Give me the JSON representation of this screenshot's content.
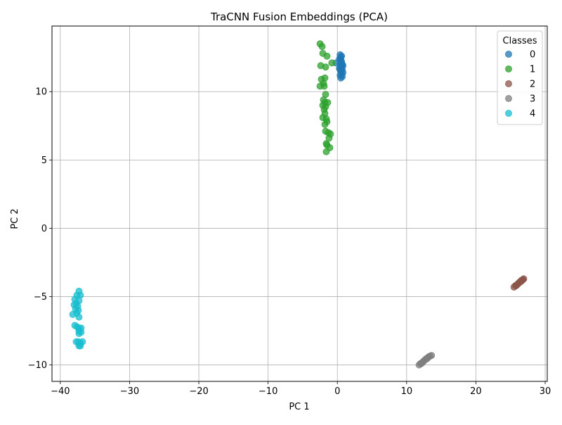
{
  "chart_data": {
    "type": "scatter",
    "title": "TraCNN Fusion Embeddings (PCA)",
    "xlabel": "PC 1",
    "ylabel": "PC 2",
    "xlim": [
      -41.2,
      30.3
    ],
    "ylim": [
      -11.2,
      14.8
    ],
    "xticks": [
      -40,
      -30,
      -20,
      -10,
      0,
      10,
      20,
      30
    ],
    "yticks": [
      -10,
      -5,
      0,
      5,
      10
    ],
    "xtick_labels": [
      "−40",
      "−30",
      "−20",
      "−10",
      "0",
      "10",
      "20",
      "30"
    ],
    "ytick_labels": [
      "−10",
      "−5",
      "0",
      "5",
      "10"
    ],
    "grid": true,
    "legend": {
      "title": "Classes",
      "placement": "top-right"
    },
    "series": [
      {
        "name": "0",
        "color": "#1f77b4",
        "points": [
          [
            0.4,
            12.7
          ],
          [
            0.5,
            12.5
          ],
          [
            0.6,
            12.6
          ],
          [
            0.3,
            12.4
          ],
          [
            0.5,
            12.3
          ],
          [
            0.6,
            12.2
          ],
          [
            0.4,
            12.1
          ],
          [
            0.7,
            12.0
          ],
          [
            0.5,
            11.9
          ],
          [
            0.6,
            11.8
          ],
          [
            0.3,
            11.7
          ],
          [
            0.7,
            11.6
          ],
          [
            0.5,
            11.5
          ],
          [
            0.8,
            11.4
          ],
          [
            0.6,
            11.3
          ],
          [
            0.4,
            11.2
          ],
          [
            0.7,
            11.1
          ],
          [
            0.5,
            11.0
          ],
          [
            0.6,
            12.0
          ],
          [
            0.4,
            11.6
          ],
          [
            -0.2,
            12.1
          ],
          [
            0.8,
            11.9
          ],
          [
            0.5,
            11.7
          ]
        ]
      },
      {
        "name": "1",
        "color": "#2ca02c",
        "points": [
          [
            -2.5,
            13.5
          ],
          [
            -2.2,
            13.3
          ],
          [
            -2.1,
            12.8
          ],
          [
            -1.5,
            12.6
          ],
          [
            -0.8,
            12.1
          ],
          [
            -2.4,
            11.9
          ],
          [
            -1.7,
            11.8
          ],
          [
            -2.3,
            10.9
          ],
          [
            -1.8,
            11.0
          ],
          [
            -2.0,
            10.6
          ],
          [
            -2.5,
            10.4
          ],
          [
            -1.9,
            10.4
          ],
          [
            -1.7,
            9.8
          ],
          [
            -2.0,
            9.4
          ],
          [
            -1.8,
            9.2
          ],
          [
            -1.4,
            9.2
          ],
          [
            -2.1,
            9.0
          ],
          [
            -1.7,
            8.9
          ],
          [
            -1.9,
            8.7
          ],
          [
            -1.8,
            8.4
          ],
          [
            -2.1,
            8.1
          ],
          [
            -1.6,
            8.0
          ],
          [
            -1.5,
            7.8
          ],
          [
            -1.8,
            7.6
          ],
          [
            -1.7,
            7.1
          ],
          [
            -1.3,
            7.0
          ],
          [
            -1.0,
            6.9
          ],
          [
            -1.2,
            6.6
          ],
          [
            -1.6,
            6.2
          ],
          [
            -1.5,
            6.1
          ],
          [
            -1.1,
            5.9
          ],
          [
            -1.6,
            5.6
          ]
        ]
      },
      {
        "name": "2",
        "color": "#8c564b",
        "points": [
          [
            25.5,
            -4.3
          ],
          [
            25.7,
            -4.2
          ],
          [
            25.9,
            -4.15
          ],
          [
            26.0,
            -4.1
          ],
          [
            26.2,
            -4.0
          ],
          [
            26.3,
            -3.95
          ],
          [
            26.5,
            -3.9
          ],
          [
            26.6,
            -3.8
          ],
          [
            26.8,
            -3.75
          ],
          [
            26.9,
            -3.7
          ],
          [
            26.1,
            -4.05
          ],
          [
            26.4,
            -3.9
          ],
          [
            25.8,
            -4.2
          ],
          [
            26.7,
            -3.8
          ]
        ]
      },
      {
        "name": "3",
        "color": "#7f7f7f",
        "points": [
          [
            11.8,
            -10.0
          ],
          [
            12.0,
            -9.9
          ],
          [
            12.2,
            -9.85
          ],
          [
            12.4,
            -9.75
          ],
          [
            12.6,
            -9.65
          ],
          [
            12.8,
            -9.55
          ],
          [
            13.0,
            -9.5
          ],
          [
            13.2,
            -9.4
          ],
          [
            13.4,
            -9.35
          ],
          [
            13.6,
            -9.3
          ],
          [
            12.3,
            -9.8
          ],
          [
            12.9,
            -9.55
          ],
          [
            12.1,
            -9.9
          ],
          [
            13.1,
            -9.45
          ]
        ]
      },
      {
        "name": "4",
        "color": "#17becf",
        "points": [
          [
            -37.3,
            -4.6
          ],
          [
            -37.6,
            -4.9
          ],
          [
            -37.1,
            -4.9
          ],
          [
            -37.9,
            -5.2
          ],
          [
            -37.3,
            -5.3
          ],
          [
            -37.7,
            -5.5
          ],
          [
            -38.0,
            -5.6
          ],
          [
            -37.5,
            -5.7
          ],
          [
            -37.8,
            -5.9
          ],
          [
            -37.4,
            -6.0
          ],
          [
            -37.6,
            -6.2
          ],
          [
            -38.2,
            -6.3
          ],
          [
            -37.3,
            -6.5
          ],
          [
            -37.9,
            -7.1
          ],
          [
            -37.6,
            -7.2
          ],
          [
            -37.3,
            -7.3
          ],
          [
            -37.0,
            -7.3
          ],
          [
            -37.3,
            -7.5
          ],
          [
            -37.0,
            -7.6
          ],
          [
            -37.3,
            -7.7
          ],
          [
            -37.7,
            -8.3
          ],
          [
            -37.4,
            -8.3
          ],
          [
            -36.8,
            -8.3
          ],
          [
            -37.1,
            -8.4
          ],
          [
            -37.3,
            -8.6
          ],
          [
            -37.1,
            -8.6
          ]
        ]
      }
    ]
  }
}
